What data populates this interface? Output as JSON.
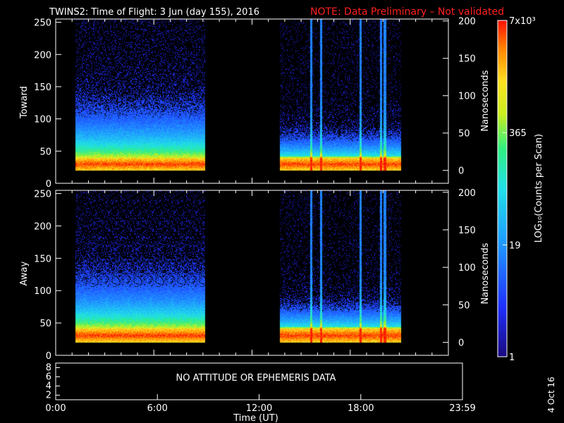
{
  "header": {
    "title": "TWINS2: Time of Flight:  3 Jun (day 155), 2016",
    "note": "NOTE: Data Preliminary – Not validated"
  },
  "footer": {
    "xlabel": "Time (UT)",
    "date_stamp": "4 Oct 16"
  },
  "colorbar": {
    "tick_labels": [
      "7x10³",
      "365",
      "19",
      "1"
    ],
    "label": "LOG₁₀(Counts per Scan)",
    "min_counts": 1,
    "max_counts": 7000,
    "scale": "log"
  },
  "no_data_message": "NO ATTITUDE OR EPHEMERIS DATA",
  "colors": {
    "background": "#000000",
    "note": "#ff2020",
    "axes": "#ffffff"
  },
  "chart_data": [
    {
      "type": "heatmap",
      "panel": "Toward",
      "ylabel": "Toward",
      "ylim": [
        0,
        255
      ],
      "yticks": [
        "0",
        "50",
        "100",
        "150",
        "200",
        "250"
      ],
      "y2label": "Nanoseconds",
      "y2ticks": [
        "0",
        "50",
        "100",
        "150",
        "200"
      ],
      "xlim_hours": [
        0,
        24
      ],
      "data_intervals_hours": [
        [
          1.2,
          9.1
        ],
        [
          13.7,
          21.1
        ]
      ],
      "peak_channel_range": [
        22,
        38
      ],
      "transient_spikes_hours": [
        15.6,
        16.2,
        18.6,
        19.85,
        20.1
      ]
    },
    {
      "type": "heatmap",
      "panel": "Away",
      "ylabel": "Away",
      "ylim": [
        0,
        255
      ],
      "yticks": [
        "0",
        "50",
        "100",
        "150",
        "200",
        "250"
      ],
      "y2label": "Nanoseconds",
      "y2ticks": [
        "0",
        "50",
        "100",
        "150",
        "200"
      ],
      "xlim_hours": [
        0,
        24
      ],
      "data_intervals_hours": [
        [
          1.2,
          9.1
        ],
        [
          13.7,
          21.1
        ]
      ],
      "peak_channel_range": [
        22,
        40
      ],
      "transient_spikes_hours": [
        15.6,
        16.2,
        18.6,
        19.85,
        20.1
      ]
    },
    {
      "type": "line",
      "panel": "ephemeris",
      "yticks": [
        "2",
        "4",
        "6",
        "8"
      ],
      "ylim": [
        1,
        9
      ],
      "xticks": [
        "0:00",
        "6:00",
        "12:00",
        "18:00",
        "23:59"
      ],
      "xtick_hours": [
        0,
        6,
        12,
        18,
        24
      ]
    }
  ]
}
